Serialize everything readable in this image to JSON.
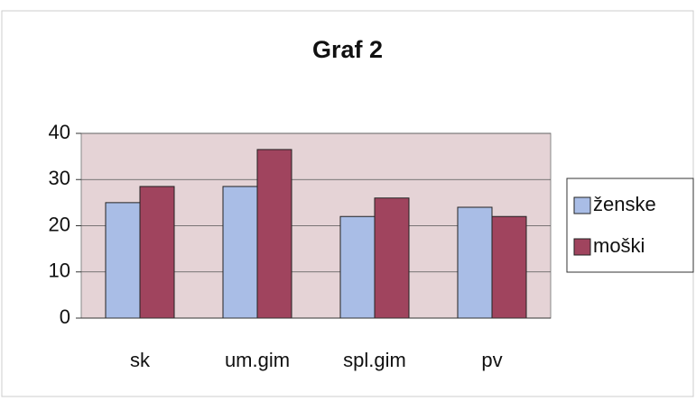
{
  "chart_data": {
    "type": "bar",
    "title": "Graf 2",
    "categories": [
      "sk",
      "um.gim",
      "spl.gim",
      "pv"
    ],
    "series": [
      {
        "name": "ženske",
        "color": "#a9bde6",
        "values": [
          25,
          28.5,
          22,
          24
        ]
      },
      {
        "name": "moški",
        "color": "#a0445e",
        "values": [
          28.5,
          36.5,
          26,
          22
        ]
      }
    ],
    "ylim": [
      0,
      40
    ],
    "yticks": [
      0,
      10,
      20,
      30,
      40
    ],
    "grid": true,
    "legend": "right"
  }
}
